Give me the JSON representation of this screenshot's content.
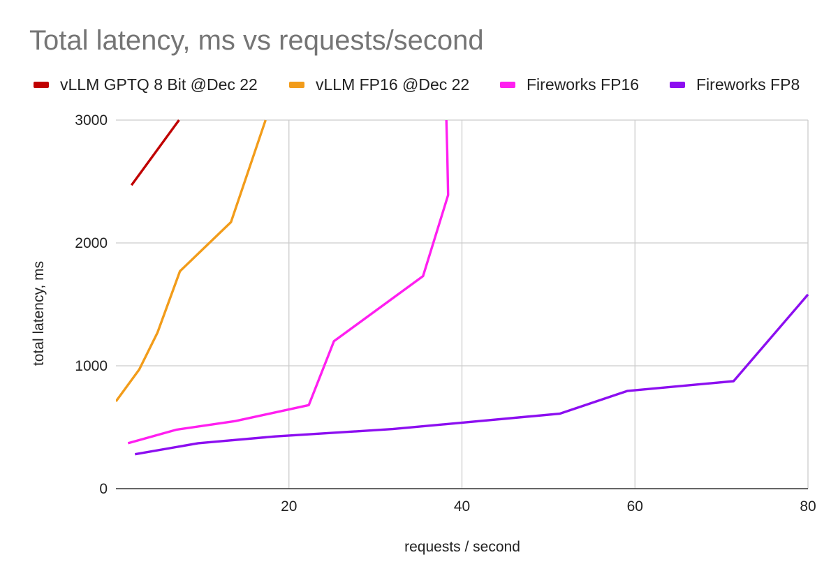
{
  "chart_data": {
    "type": "line",
    "title": "Total latency, ms vs requests/second",
    "xlabel": "requests / second",
    "ylabel": "total latency, ms",
    "xlim": [
      0,
      80
    ],
    "ylim": [
      0,
      3000
    ],
    "x_ticks": [
      "20",
      "40",
      "60",
      "80"
    ],
    "y_ticks": [
      "0",
      "1000",
      "2000",
      "3000"
    ],
    "grid": true,
    "legend_position": "top",
    "series": [
      {
        "name": "vLLM GPTQ 8 Bit @Dec 22",
        "color": "#c00000",
        "x": [
          1.8,
          7.3
        ],
        "y": [
          2470,
          3000
        ]
      },
      {
        "name": "vLLM FP16 @Dec 22",
        "color": "#f29c1a",
        "x": [
          0,
          2.7,
          4.8,
          7.4,
          13.3,
          17.3
        ],
        "y": [
          710,
          970,
          1270,
          1770,
          2170,
          3000
        ]
      },
      {
        "name": "Fireworks FP16",
        "color": "#ff1ff0",
        "x": [
          1.4,
          7.0,
          13.8,
          22.3,
          25.2,
          35.5,
          38.4,
          38.3,
          38.2
        ],
        "y": [
          370,
          480,
          550,
          680,
          1200,
          1730,
          2390,
          2750,
          3000
        ]
      },
      {
        "name": "Fireworks FP8",
        "color": "#8c0ef0",
        "x": [
          2.2,
          9.5,
          18.4,
          32.0,
          51.3,
          59.1,
          71.4,
          80
        ],
        "y": [
          280,
          370,
          425,
          485,
          610,
          795,
          875,
          1580
        ]
      }
    ]
  }
}
